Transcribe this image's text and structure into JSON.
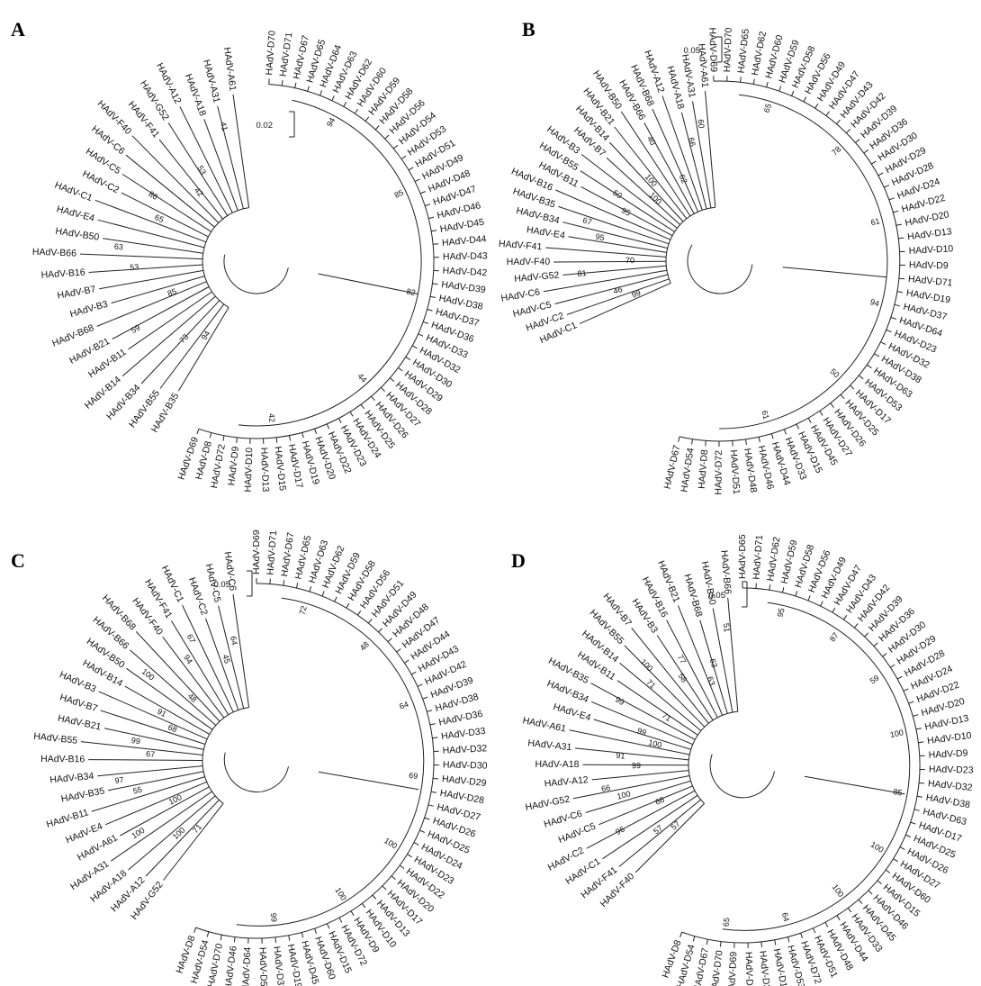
{
  "panels": [
    {
      "letter": "A",
      "scale": "0.02",
      "d_labels": [
        "HAdV-D70",
        "HAdV-D71",
        "HAdV-D67",
        "HAdV-D65",
        "HAdV-D64",
        "HAdV-D63",
        "HAdV-D62",
        "HAdV-D60",
        "HAdV-D59",
        "HAdV-D58",
        "HAdV-D56",
        "HAdV-D54",
        "HAdV-D53",
        "HAdV-D51",
        "HAdV-D49",
        "HAdV-D48",
        "HAdV-D47",
        "HAdV-D46",
        "HAdV-D45",
        "HAdV-D44",
        "HAdV-D43",
        "HAdV-D42",
        "HAdV-D39",
        "HAdV-D38",
        "HAdV-D37",
        "HAdV-D36",
        "HAdV-D33",
        "HAdV-D32",
        "HAdV-D30",
        "HAdV-D29",
        "HAdV-D28",
        "HAdV-D27",
        "HAdV-D26",
        "HAdV-D25",
        "HAdV-D24",
        "HAdV-D23",
        "HAdV-D22",
        "HAdV-D20",
        "HAdV-D19",
        "HAdV-D17",
        "HAdV-D15",
        "HAdV-D13",
        "HAdV-D10",
        "HAdV-D9",
        "HAdV-D72",
        "HAdV-D8",
        "HAdV-D69"
      ],
      "other_labels": [
        "HAdV-B35",
        "HAdV-B55",
        "HAdV-B34",
        "HAdV-B14",
        "HAdV-B11",
        "HAdV-B21",
        "HAdV-B68",
        "HAdV-B3",
        "HAdV-B7",
        "HAdV-B16",
        "HAdV-B66",
        "HAdV-B50",
        "HAdV-E4",
        "HAdV-C1",
        "HAdV-C2",
        "HAdV-C5",
        "HAdV-C6",
        "HAdV-F40",
        "HAdV-F41",
        "HAdV-G52",
        "HAdV-A12",
        "HAdV-A18",
        "HAdV-A31",
        "HAdV-A61"
      ],
      "bootstrap": [
        "94",
        "73",
        "94",
        "59",
        "85",
        "85",
        "53",
        "63",
        "82",
        "65",
        "86",
        "44",
        "42",
        "53",
        "42",
        "41"
      ]
    },
    {
      "letter": "B",
      "scale": "0.05",
      "d_labels": [
        "HAdV-D69",
        "HAdV-D70",
        "HAdV-D65",
        "HAdV-D62",
        "HAdV-D60",
        "HAdV-D59",
        "HAdV-D58",
        "HAdV-D56",
        "HAdV-D49",
        "HAdV-D47",
        "HAdV-D43",
        "HAdV-D42",
        "HAdV-D39",
        "HAdV-D36",
        "HAdV-D30",
        "HAdV-D29",
        "HAdV-D28",
        "HAdV-D24",
        "HAdV-D22",
        "HAdV-D20",
        "HAdV-D13",
        "HAdV-D10",
        "HAdV-D9",
        "HAdV-D71",
        "HAdV-D19",
        "HAdV-D37",
        "HAdV-D64",
        "HAdV-D23",
        "HAdV-D32",
        "HAdV-D38",
        "HAdV-D63",
        "HAdV-D53",
        "HAdV-D17",
        "HAdV-D25",
        "HAdV-D26",
        "HAdV-D27",
        "HAdV-D45",
        "HAdV-D15",
        "HAdV-D33",
        "HAdV-D44",
        "HAdV-D46",
        "HAdV-D48",
        "HAdV-D51",
        "HAdV-D72",
        "HAdV-D8",
        "HAdV-D54",
        "HAdV-D67"
      ],
      "other_labels": [
        "HAdV-C1",
        "HAdV-C2",
        "HAdV-C5",
        "HAdV-C6",
        "HAdV-G52",
        "HAdV-F40",
        "HAdV-F41",
        "HAdV-E4",
        "HAdV-B34",
        "HAdV-B35",
        "HAdV-B16",
        "HAdV-B11",
        "HAdV-B55",
        "HAdV-B3",
        "HAdV-B7",
        "HAdV-B14",
        "HAdV-B21",
        "HAdV-B50",
        "HAdV-B66",
        "HAdV-B68",
        "HAdV-A12",
        "HAdV-A18",
        "HAdV-A31",
        "HAdV-A61"
      ],
      "bootstrap": [
        "99",
        "46",
        "65",
        "81",
        "70",
        "78",
        "95",
        "67",
        "61",
        "95",
        "50",
        "94",
        "100",
        "100",
        "50",
        "40",
        "62",
        "61",
        "66",
        "60"
      ]
    },
    {
      "letter": "C",
      "scale": "0.05",
      "d_labels": [
        "HAdV-D69",
        "HAdV-D71",
        "HAdV-D67",
        "HAdV-D65",
        "HAdV-D63",
        "HAdV-D62",
        "HAdV-D59",
        "HAdV-D58",
        "HAdV-D56",
        "HAdV-D51",
        "HAdV-D49",
        "HAdV-D48",
        "HAdV-D47",
        "HAdV-D44",
        "HAdV-D43",
        "HAdV-D42",
        "HAdV-D39",
        "HAdV-D38",
        "HAdV-D36",
        "HAdV-D33",
        "HAdV-D32",
        "HAdV-D30",
        "HAdV-D29",
        "HAdV-D28",
        "HAdV-D27",
        "HAdV-D26",
        "HAdV-D25",
        "HAdV-D24",
        "HAdV-D23",
        "HAdV-D22",
        "HAdV-D20",
        "HAdV-D17",
        "HAdV-D13",
        "HAdV-D10",
        "HAdV-D9",
        "HAdV-D72",
        "HAdV-D15",
        "HAdV-D60",
        "HAdV-D45",
        "HAdV-D19",
        "HAdV-D37",
        "HAdV-D53",
        "HAdV-D64",
        "HAdV-D46",
        "HAdV-D70",
        "HAdV-D54",
        "HAdV-D8"
      ],
      "other_labels": [
        "HAdV-G52",
        "HAdV-A12",
        "HAdV-A18",
        "HAdV-A31",
        "HAdV-A61",
        "HAdV-E4",
        "HAdV-B11",
        "HAdV-B35",
        "HAdV-B34",
        "HAdV-B16",
        "HAdV-B55",
        "HAdV-B21",
        "HAdV-B7",
        "HAdV-B3",
        "HAdV-B14",
        "HAdV-B50",
        "HAdV-B66",
        "HAdV-B68",
        "HAdV-F40",
        "HAdV-F41",
        "HAdV-C1",
        "HAdV-C2",
        "HAdV-C5",
        "HAdV-C6"
      ],
      "bootstrap": [
        "71",
        "100",
        "72",
        "100",
        "100",
        "48",
        "55",
        "97",
        "64",
        "67",
        "99",
        "69",
        "68",
        "91",
        "100",
        "100",
        "48",
        "100",
        "94",
        "67",
        "99",
        "45",
        "64"
      ]
    },
    {
      "letter": "D",
      "scale": "0.05",
      "d_labels": [
        "HAdV-D65",
        "HAdV-D71",
        "HAdV-D62",
        "HAdV-D59",
        "HAdV-D58",
        "HAdV-D56",
        "HAdV-D49",
        "HAdV-D47",
        "HAdV-D43",
        "HAdV-D42",
        "HAdV-D39",
        "HAdV-D36",
        "HAdV-D30",
        "HAdV-D29",
        "HAdV-D28",
        "HAdV-D24",
        "HAdV-D22",
        "HAdV-D20",
        "HAdV-D13",
        "HAdV-D10",
        "HAdV-D9",
        "HAdV-D23",
        "HAdV-D32",
        "HAdV-D38",
        "HAdV-D63",
        "HAdV-D17",
        "HAdV-D25",
        "HAdV-D26",
        "HAdV-D27",
        "HAdV-D60",
        "HAdV-D15",
        "HAdV-D46",
        "HAdV-D45",
        "HAdV-D33",
        "HAdV-D44",
        "HAdV-D48",
        "HAdV-D51",
        "HAdV-D72",
        "HAdV-D53",
        "HAdV-D19",
        "HAdV-D37",
        "HAdV-D64",
        "HAdV-D69",
        "HAdV-D70",
        "HAdV-D67",
        "HAdV-D54",
        "HAdV-D8"
      ],
      "other_labels": [
        "HAdV-F40",
        "HAdV-F41",
        "HAdV-C1",
        "HAdV-C2",
        "HAdV-C5",
        "HAdV-C6",
        "HAdV-G52",
        "HAdV-A12",
        "HAdV-A18",
        "HAdV-A31",
        "HAdV-A61",
        "HAdV-E4",
        "HAdV-B34",
        "HAdV-B35",
        "HAdV-B11",
        "HAdV-B14",
        "HAdV-B55",
        "HAdV-B7",
        "HAdV-B3",
        "HAdV-B16",
        "HAdV-B21",
        "HAdV-B68",
        "HAdV-B50",
        "HAdV-B66"
      ],
      "bootstrap": [
        "57",
        "57",
        "95",
        "96",
        "66",
        "87",
        "100",
        "66",
        "59",
        "99",
        "91",
        "100",
        "100",
        "99",
        "85",
        "99",
        "71",
        "100",
        "71",
        "100",
        "100",
        "58",
        "77",
        "64",
        "63",
        "63",
        "65",
        "51"
      ]
    }
  ]
}
